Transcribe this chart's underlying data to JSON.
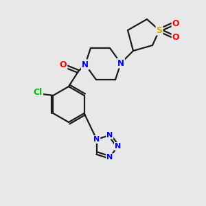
{
  "bg_color": "#e8e8e8",
  "atom_colors": {
    "N": "#0000ff",
    "O": "#ff0000",
    "S": "#ccaa00",
    "Cl": "#00bb00",
    "C": "#000000"
  },
  "bond_color": "#1a1a1a",
  "bond_width": 1.6,
  "font_size_atom": 8.5
}
